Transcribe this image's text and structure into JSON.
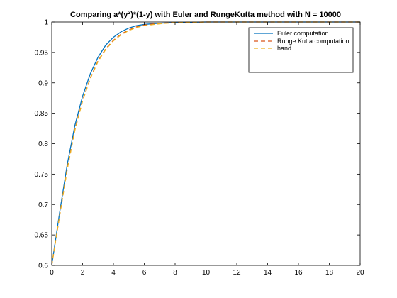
{
  "chart_data": {
    "type": "line",
    "title": {
      "pre": "Comparing a*(y",
      "sup": "2",
      "post": ")*(1-y) with Euler and RungeKutta method with N = 10000"
    },
    "xlabel": "",
    "ylabel": "",
    "xlim": [
      0,
      20
    ],
    "ylim": [
      0.6,
      1
    ],
    "xticks": [
      0,
      2,
      4,
      6,
      8,
      10,
      12,
      14,
      16,
      18,
      20
    ],
    "yticks": [
      0.6,
      0.65,
      0.7,
      0.75,
      0.8,
      0.85,
      0.9,
      0.95,
      1
    ],
    "ytick_labels": [
      "0.6",
      "0.65",
      "0.7",
      "0.75",
      "0.8",
      "0.85",
      "0.9",
      "0.95",
      "1"
    ],
    "grid": false,
    "legend_position": "top-right",
    "series": [
      {
        "name": "Euler computation",
        "color": "#0072bd",
        "style": "solid",
        "x": [
          0,
          0.5,
          1,
          1.5,
          2,
          2.5,
          3,
          3.5,
          4,
          4.5,
          5,
          5.5,
          6,
          7,
          8,
          10,
          12,
          14,
          16,
          18,
          20
        ],
        "y": [
          0.6,
          0.685,
          0.765,
          0.83,
          0.878,
          0.915,
          0.942,
          0.962,
          0.975,
          0.984,
          0.99,
          0.994,
          0.996,
          0.998,
          0.999,
          1,
          1,
          1,
          1,
          1,
          1
        ]
      },
      {
        "name": "Runge Kutta computation",
        "color": "#d95319",
        "style": "dashed",
        "x": [
          0,
          0.5,
          1,
          1.5,
          2,
          2.5,
          3,
          3.5,
          4,
          4.5,
          5,
          5.5,
          6,
          7,
          8,
          10,
          12,
          14,
          16,
          18,
          20
        ],
        "y": [
          0.6,
          0.68,
          0.758,
          0.823,
          0.871,
          0.908,
          0.936,
          0.956,
          0.97,
          0.98,
          0.987,
          0.992,
          0.995,
          0.998,
          0.999,
          1,
          1,
          1,
          1,
          1,
          1
        ]
      },
      {
        "name": "hand",
        "color": "#edb120",
        "style": "dashed",
        "x": [
          0,
          0.5,
          1,
          1.5,
          2,
          2.5,
          3,
          3.5,
          4,
          4.5,
          5,
          5.5,
          6,
          7,
          8,
          10,
          12,
          14,
          16,
          18,
          20
        ],
        "y": [
          0.6,
          0.68,
          0.757,
          0.822,
          0.87,
          0.907,
          0.935,
          0.955,
          0.969,
          0.979,
          0.986,
          0.991,
          0.994,
          0.997,
          0.999,
          1,
          1,
          1,
          1,
          1,
          1
        ]
      }
    ]
  }
}
